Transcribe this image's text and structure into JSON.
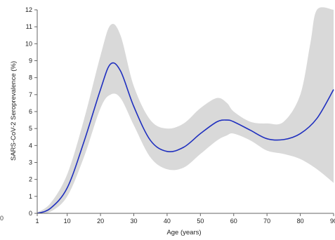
{
  "chart_data": {
    "type": "line",
    "xlabel": "Age (years)",
    "ylabel": "SARS-CoV-2 Seroprevalence (%)",
    "xlim": [
      1,
      90
    ],
    "ylim": [
      0,
      12
    ],
    "x_ticks": [
      "1",
      "10",
      "20",
      "30",
      "40",
      "50",
      "60",
      "70",
      "80",
      "90"
    ],
    "y_ticks": [
      "0",
      "1",
      "2",
      "3",
      "4",
      "5",
      "6",
      "7",
      "8",
      "9",
      "10",
      "11",
      "12"
    ],
    "grid": false,
    "legend": "none",
    "colors": {
      "line": "#1f2fbf",
      "band": "#d9d9d9",
      "axis": "#666666"
    },
    "series": [
      {
        "kind": "estimate",
        "x": [
          1,
          5,
          10,
          15,
          20,
          23,
          26,
          30,
          35,
          40,
          45,
          50,
          55,
          58,
          60,
          65,
          70,
          75,
          80,
          85,
          90
        ],
        "y": [
          0.0,
          0.3,
          1.5,
          4.2,
          7.3,
          8.8,
          8.4,
          6.3,
          4.3,
          3.65,
          3.9,
          4.7,
          5.4,
          5.5,
          5.4,
          4.9,
          4.4,
          4.35,
          4.7,
          5.6,
          7.3
        ]
      },
      {
        "kind": "ci-upper",
        "x": [
          1,
          5,
          10,
          15,
          20,
          23,
          26,
          30,
          35,
          40,
          45,
          50,
          55,
          58,
          60,
          65,
          70,
          75,
          80,
          83,
          85,
          90
        ],
        "y": [
          0.05,
          0.6,
          2.3,
          5.5,
          9.3,
          11.1,
          10.5,
          7.5,
          5.5,
          5.0,
          5.3,
          6.2,
          6.8,
          6.5,
          6.0,
          5.4,
          5.3,
          5.4,
          7.0,
          10.0,
          12.0,
          12.0
        ]
      },
      {
        "kind": "ci-lower",
        "x": [
          1,
          5,
          10,
          15,
          20,
          23,
          26,
          30,
          35,
          40,
          45,
          50,
          55,
          58,
          60,
          65,
          70,
          75,
          80,
          85,
          90
        ],
        "y": [
          0.0,
          0.1,
          1.0,
          3.3,
          6.2,
          7.0,
          6.8,
          5.2,
          3.3,
          2.6,
          2.7,
          3.5,
          4.3,
          4.6,
          4.7,
          4.3,
          3.7,
          3.5,
          3.2,
          2.6,
          1.8
        ]
      }
    ]
  },
  "stray_label": "0"
}
